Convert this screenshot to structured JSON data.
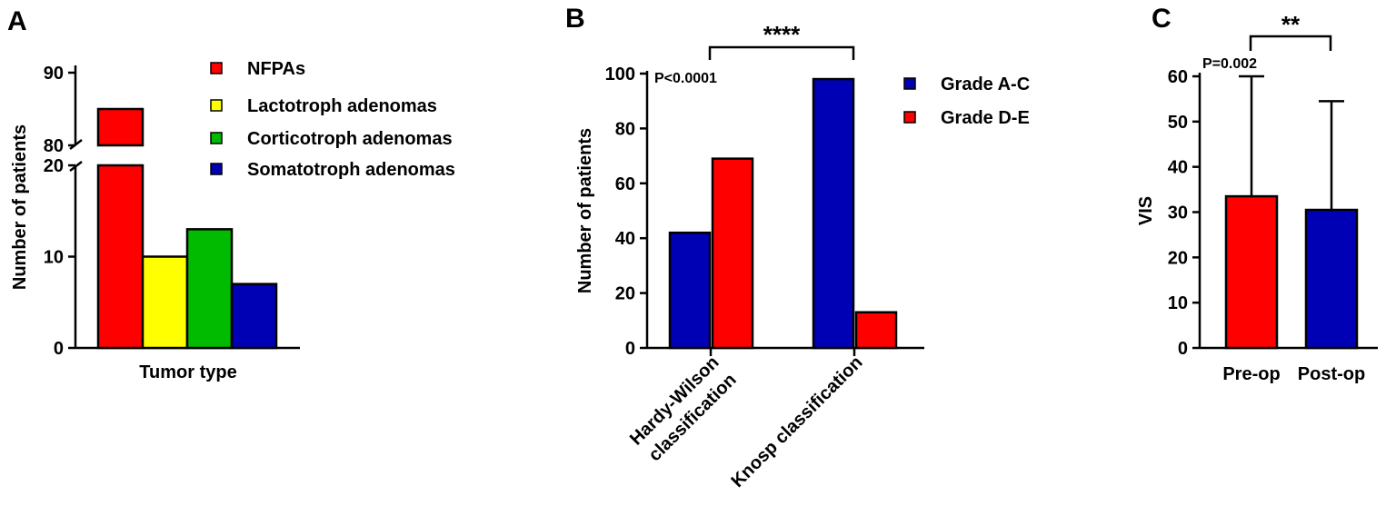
{
  "colors": {
    "red": "#ff0000",
    "yellow": "#ffff00",
    "green": "#00bb00",
    "blue": "#0000b4"
  },
  "chart_data": [
    {
      "panel": "A",
      "type": "bar",
      "xlabel": "Tumor type",
      "ylabel": "Number of patients",
      "broken_axis": {
        "lower_range": [
          0,
          20
        ],
        "upper_range": [
          80,
          90
        ]
      },
      "yticks_lower": [
        "0",
        "10",
        "20"
      ],
      "yticks_upper": [
        "80",
        "90"
      ],
      "series": [
        {
          "name": "NFPAs",
          "value": 85,
          "color": "#ff0000"
        },
        {
          "name": "Lactotroph adenomas",
          "value": 10,
          "color": "#ffff00"
        },
        {
          "name": "Corticotroph adenomas",
          "value": 13,
          "color": "#00bb00"
        },
        {
          "name": "Somatotroph adenomas",
          "value": 7,
          "color": "#0000b4"
        }
      ]
    },
    {
      "panel": "B",
      "type": "bar",
      "ylabel": "Number of patients",
      "ylim": [
        0,
        100
      ],
      "yticks": [
        "0",
        "20",
        "40",
        "60",
        "80",
        "100"
      ],
      "categories": [
        "Hardy-Wilson classification",
        "Knosp classification"
      ],
      "category_lines": [
        [
          "Hardy-Wilson",
          "classification"
        ],
        [
          "Knosp classification"
        ]
      ],
      "series": [
        {
          "name": "Grade A-C",
          "values": [
            42,
            98
          ],
          "color": "#0000b4"
        },
        {
          "name": "Grade D-E",
          "values": [
            69,
            13
          ],
          "color": "#ff0000"
        }
      ],
      "significance": "****",
      "pvalue": "P<0.0001"
    },
    {
      "panel": "C",
      "type": "bar",
      "ylabel": "VIS",
      "ylim": [
        0,
        60
      ],
      "yticks": [
        "0",
        "10",
        "20",
        "30",
        "40",
        "50",
        "60"
      ],
      "categories": [
        "Pre-op",
        "Post-op"
      ],
      "values": [
        33.5,
        30.5
      ],
      "errors": [
        26.5,
        24
      ],
      "colors": [
        "#ff0000",
        "#0000b4"
      ],
      "significance": "**",
      "pvalue": "P=0.002"
    }
  ]
}
